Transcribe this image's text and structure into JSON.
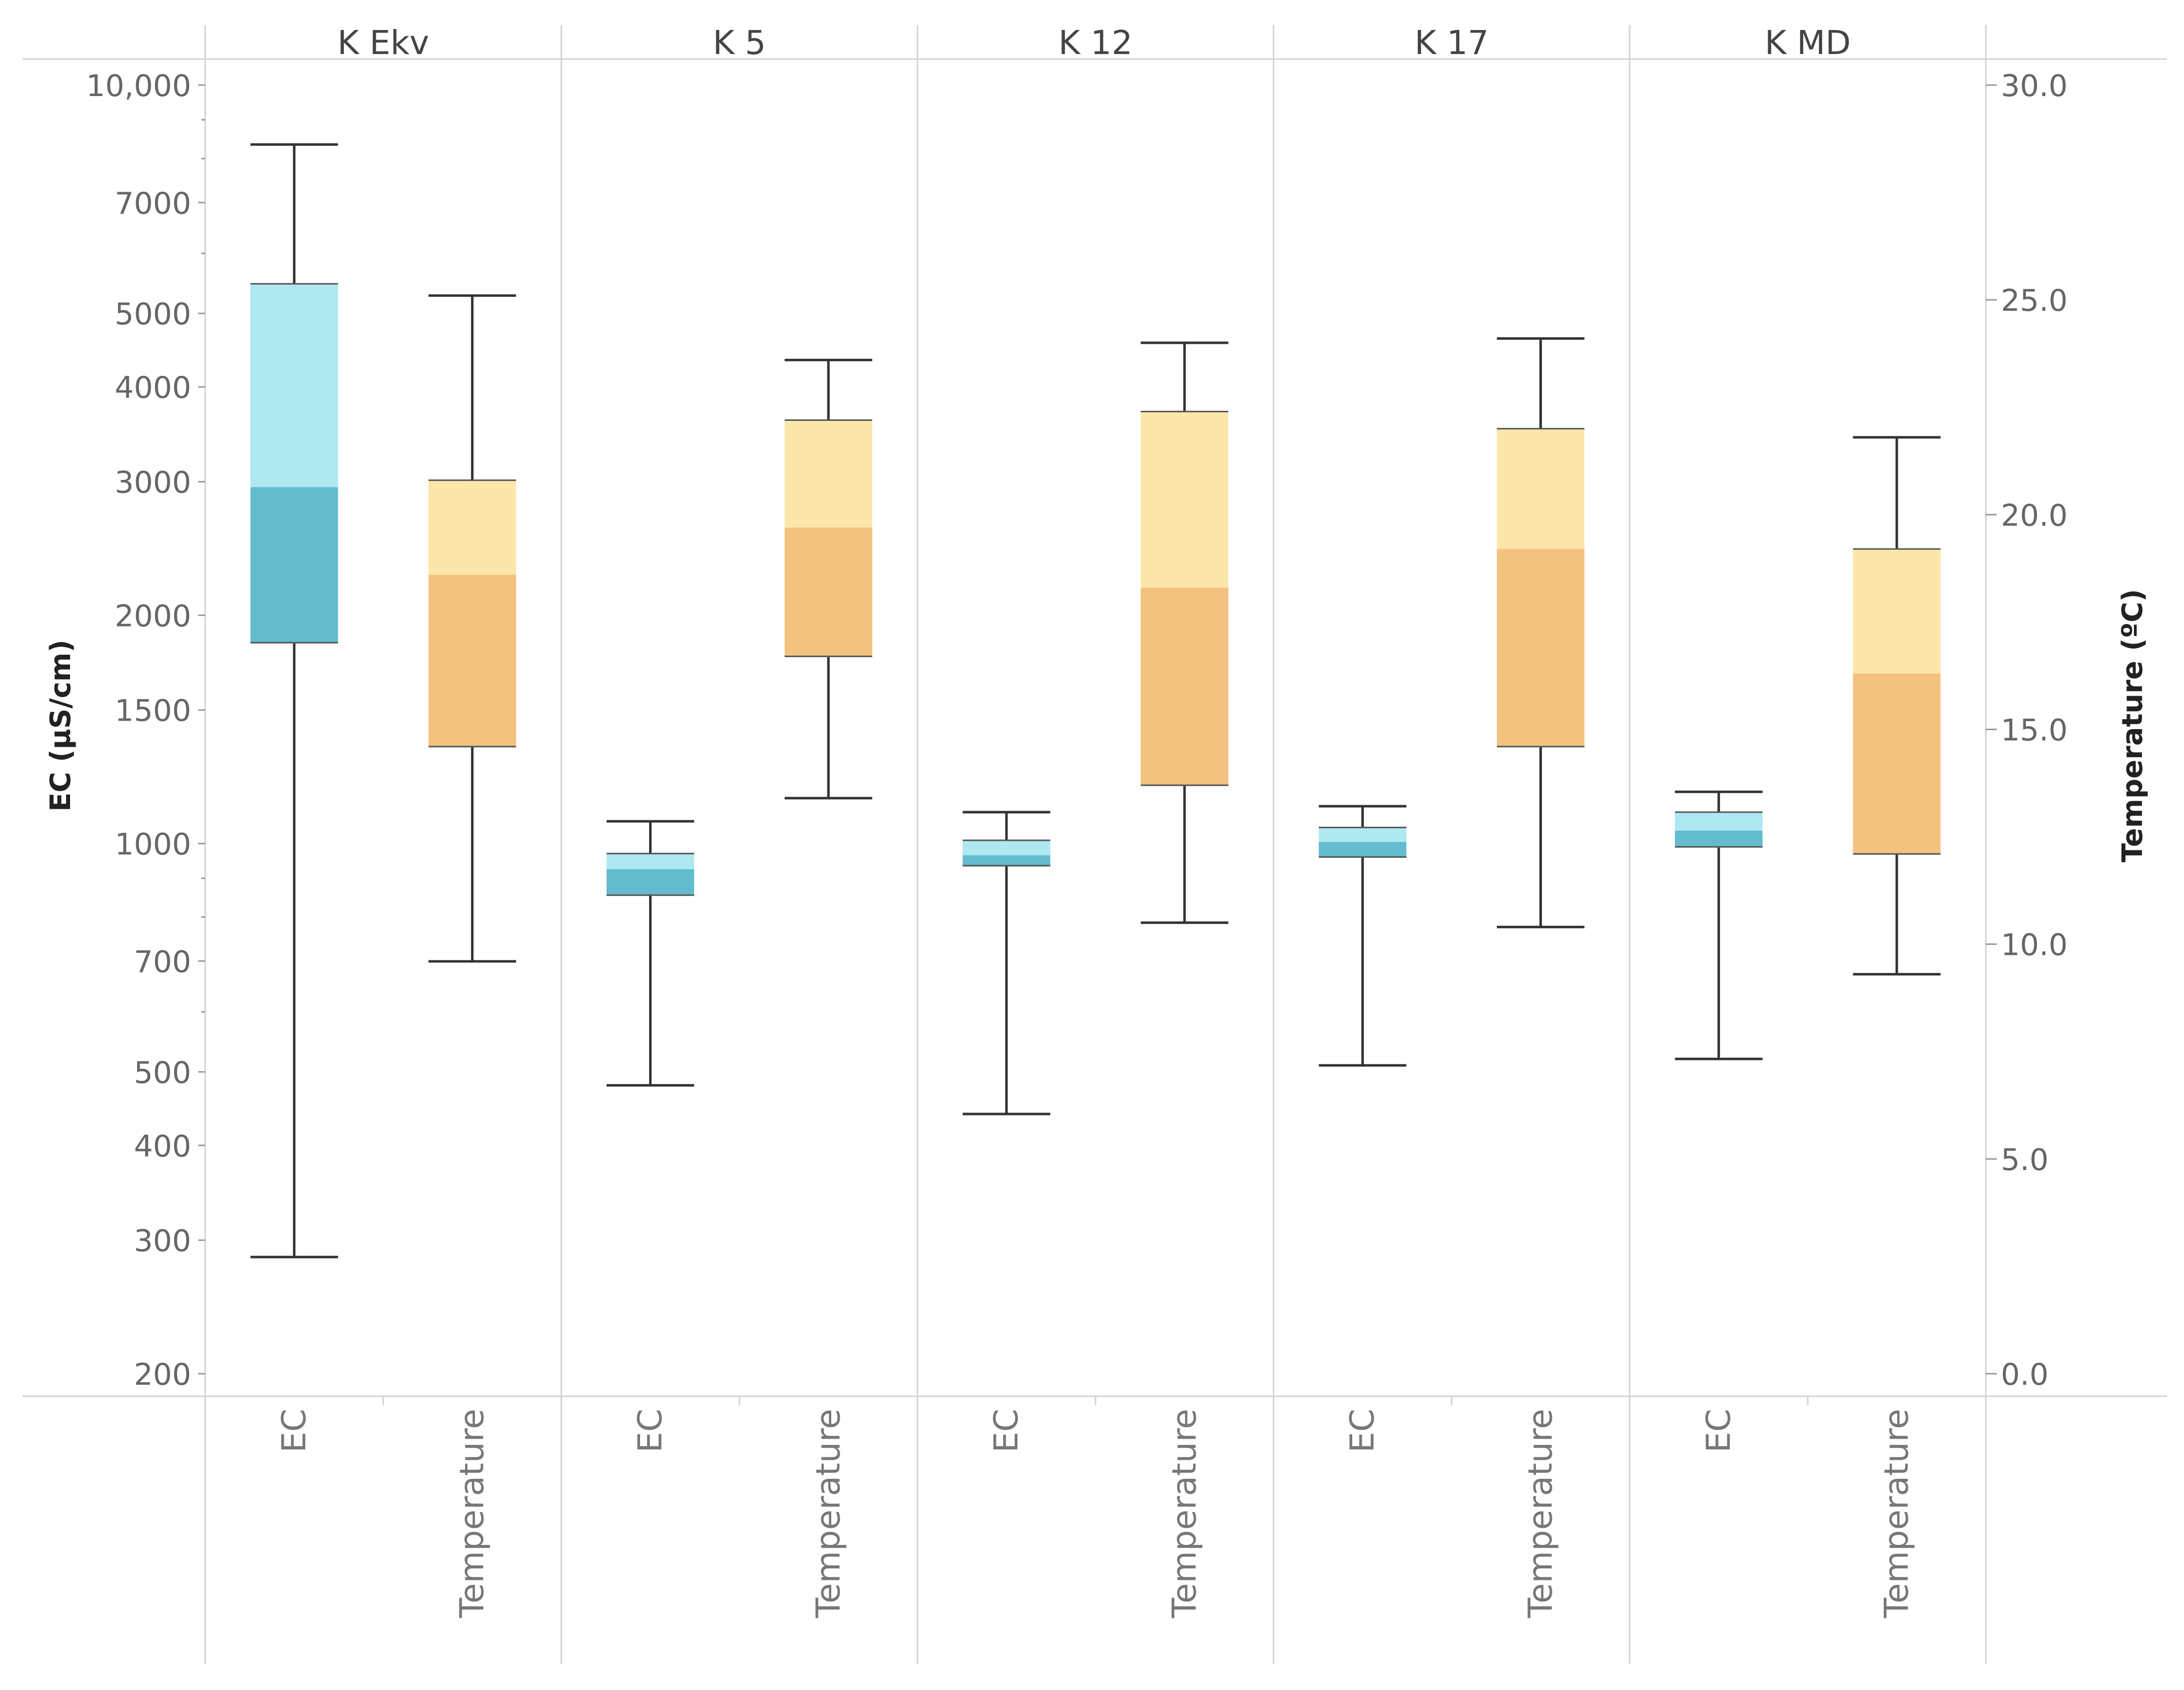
{
  "chart_data": {
    "type": "boxplot",
    "panels": [
      "K Ekv",
      "K 5",
      "K 12",
      "K 17",
      "K MD"
    ],
    "categories": [
      "EC",
      "Temperature"
    ],
    "ylabel_left": "EC (µS/cm)",
    "ylabel_right": "Temperature (ºC)",
    "yscale_left": "log",
    "ylim_left": [
      200,
      10000
    ],
    "ylim_right": [
      0,
      30
    ],
    "yticks_left": [
      {
        "value": 10000,
        "label": "10,000"
      },
      {
        "value": 7000,
        "label": "7000"
      },
      {
        "value": 5000,
        "label": "5000"
      },
      {
        "value": 4000,
        "label": "4000"
      },
      {
        "value": 3000,
        "label": "3000"
      },
      {
        "value": 2000,
        "label": "2000"
      },
      {
        "value": 1500,
        "label": "1500"
      },
      {
        "value": 1000,
        "label": "1000"
      },
      {
        "value": 700,
        "label": "700"
      },
      {
        "value": 500,
        "label": "500"
      },
      {
        "value": 400,
        "label": "400"
      },
      {
        "value": 300,
        "label": "300"
      },
      {
        "value": 200,
        "label": "200"
      }
    ],
    "yticks_right": [
      {
        "value": 30,
        "label": "30.0"
      },
      {
        "value": 25,
        "label": "25.0"
      },
      {
        "value": 20,
        "label": "20.0"
      },
      {
        "value": 15,
        "label": "15.0"
      },
      {
        "value": 10,
        "label": "10.0"
      },
      {
        "value": 5,
        "label": "5.0"
      },
      {
        "value": 0,
        "label": "0.0"
      }
    ],
    "series": [
      {
        "name": "EC",
        "axis": "left",
        "color_upper": "#aee8f1",
        "color_lower": "#62bccd",
        "boxes": [
          {
            "panel": "K Ekv",
            "min": 285,
            "q1": 1840,
            "median": 2950,
            "q3": 5470,
            "max": 8350
          },
          {
            "panel": "K 5",
            "min": 480,
            "q1": 855,
            "median": 925,
            "q3": 970,
            "max": 1070
          },
          {
            "panel": "K 12",
            "min": 440,
            "q1": 935,
            "median": 965,
            "q3": 1010,
            "max": 1100
          },
          {
            "panel": "K 17",
            "min": 510,
            "q1": 960,
            "median": 1005,
            "q3": 1050,
            "max": 1120
          },
          {
            "panel": "K MD",
            "min": 520,
            "q1": 990,
            "median": 1040,
            "q3": 1100,
            "max": 1170
          }
        ]
      },
      {
        "name": "Temperature",
        "axis": "right",
        "color_upper": "#fce6aa",
        "color_lower": "#f2c27e",
        "boxes": [
          {
            "panel": "K Ekv",
            "min": 9.6,
            "q1": 14.6,
            "median": 18.6,
            "q3": 20.8,
            "max": 25.1
          },
          {
            "panel": "K 5",
            "min": 13.4,
            "q1": 16.7,
            "median": 19.7,
            "q3": 22.2,
            "max": 23.6
          },
          {
            "panel": "K 12",
            "min": 10.5,
            "q1": 13.7,
            "median": 18.3,
            "q3": 22.4,
            "max": 24.0
          },
          {
            "panel": "K 17",
            "min": 10.4,
            "q1": 14.6,
            "median": 19.2,
            "q3": 22.0,
            "max": 24.1
          },
          {
            "panel": "K MD",
            "min": 9.3,
            "q1": 12.1,
            "median": 16.3,
            "q3": 19.2,
            "max": 21.8
          }
        ]
      }
    ]
  }
}
